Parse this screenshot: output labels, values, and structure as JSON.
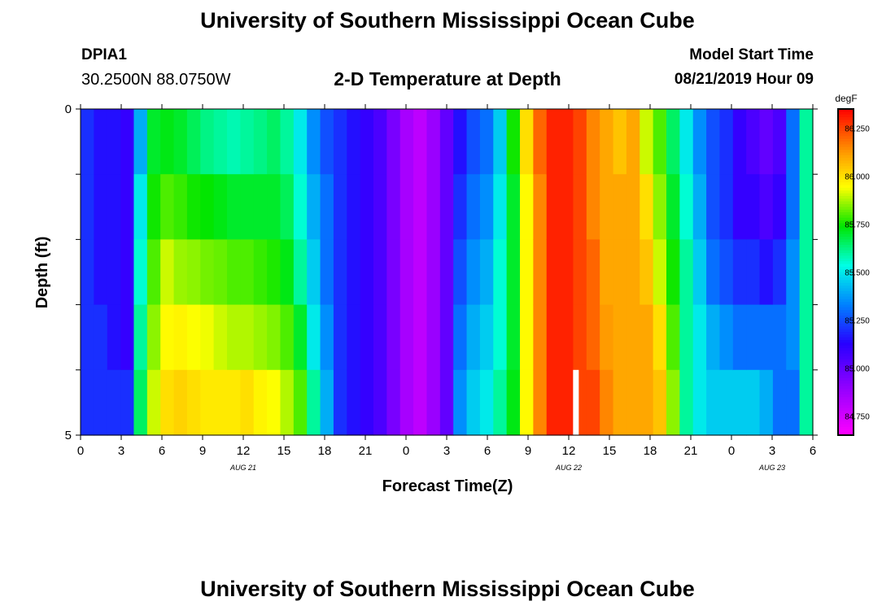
{
  "header": {
    "main_title": "University of Southern Mississippi Ocean Cube",
    "station_id": "DPIA1",
    "coordinates": "30.2500N 88.0750W",
    "model_start_label": "Model Start Time",
    "model_start_value": "08/21/2019 Hour 09"
  },
  "footer": {
    "title": "University of Southern Mississippi Ocean Cube"
  },
  "colors": {
    "marker": "#ffffff",
    "border": "#000000"
  },
  "chart_data": {
    "type": "heatmap",
    "title": "2-D Temperature at Depth",
    "xlabel": "Forecast Time(Z)",
    "ylabel": "Depth (ft)",
    "x_tick_labels": [
      "0",
      "3",
      "6",
      "9",
      "12",
      "15",
      "18",
      "21",
      "0",
      "3",
      "6",
      "9",
      "12",
      "15",
      "18",
      "21",
      "0",
      "3",
      "6"
    ],
    "x_range_hours": [
      0,
      54
    ],
    "date_labels": [
      {
        "text": "AUG 21",
        "hour": 12
      },
      {
        "text": "AUG 22",
        "hour": 36
      },
      {
        "text": "AUG 23",
        "hour": 51
      }
    ],
    "y_range": [
      0,
      5
    ],
    "y_tick_labels": [
      "0",
      "5"
    ],
    "y_minor_ticks": [
      0,
      1,
      2,
      3,
      4,
      5
    ],
    "depth_bands": 5,
    "colorbar": {
      "unit": "degF",
      "min": 84.65,
      "max": 86.35,
      "ticks": [
        "86.250",
        "86.000",
        "85.750",
        "85.500",
        "85.250",
        "85.000",
        "84.750"
      ]
    },
    "current_time_marker_hour": 36.5,
    "hourly_profiles": [
      [
        85.2,
        85.2,
        85.2,
        85.2,
        85.2
      ],
      [
        85.15,
        85.15,
        85.15,
        85.2,
        85.2
      ],
      [
        85.15,
        85.15,
        85.15,
        85.15,
        85.2
      ],
      [
        85.1,
        85.1,
        85.1,
        85.1,
        85.2
      ],
      [
        85.4,
        85.5,
        85.55,
        85.6,
        85.65
      ],
      [
        85.7,
        85.75,
        85.8,
        85.85,
        85.9
      ],
      [
        85.72,
        85.8,
        85.9,
        85.95,
        86.0
      ],
      [
        85.7,
        85.78,
        85.86,
        85.96,
        86.02
      ],
      [
        85.66,
        85.75,
        85.85,
        85.94,
        86.0
      ],
      [
        85.62,
        85.74,
        85.83,
        85.93,
        85.98
      ],
      [
        85.6,
        85.72,
        85.82,
        85.9,
        85.98
      ],
      [
        85.58,
        85.7,
        85.8,
        85.88,
        85.98
      ],
      [
        85.6,
        85.7,
        85.8,
        85.88,
        86.0
      ],
      [
        85.62,
        85.7,
        85.78,
        85.86,
        85.96
      ],
      [
        85.65,
        85.7,
        85.76,
        85.84,
        85.94
      ],
      [
        85.6,
        85.66,
        85.72,
        85.8,
        85.88
      ],
      [
        85.5,
        85.55,
        85.6,
        85.7,
        85.8
      ],
      [
        85.35,
        85.4,
        85.45,
        85.5,
        85.6
      ],
      [
        85.25,
        85.3,
        85.3,
        85.35,
        85.4
      ],
      [
        85.2,
        85.2,
        85.2,
        85.2,
        85.2
      ],
      [
        85.15,
        85.15,
        85.15,
        85.15,
        85.15
      ],
      [
        85.1,
        85.1,
        85.1,
        85.1,
        85.1
      ],
      [
        85.05,
        85.05,
        85.05,
        85.05,
        85.05
      ],
      [
        84.95,
        84.95,
        84.95,
        84.95,
        84.95
      ],
      [
        84.85,
        84.85,
        84.85,
        84.85,
        84.85
      ],
      [
        84.8,
        84.8,
        84.8,
        84.8,
        84.8
      ],
      [
        84.88,
        84.88,
        84.88,
        84.88,
        84.88
      ],
      [
        85.0,
        85.0,
        85.0,
        85.0,
        85.0
      ],
      [
        85.15,
        85.2,
        85.25,
        85.3,
        85.35
      ],
      [
        85.25,
        85.3,
        85.35,
        85.4,
        85.45
      ],
      [
        85.3,
        85.35,
        85.4,
        85.45,
        85.5
      ],
      [
        85.45,
        85.5,
        85.55,
        85.55,
        85.6
      ],
      [
        85.75,
        85.7,
        85.7,
        85.7,
        85.72
      ],
      [
        86.0,
        85.95,
        85.95,
        85.95,
        85.95
      ],
      [
        86.2,
        86.15,
        86.15,
        86.15,
        86.15
      ],
      [
        86.3,
        86.3,
        86.3,
        86.3,
        86.3
      ],
      [
        86.3,
        86.3,
        86.3,
        86.3,
        86.3
      ],
      [
        86.25,
        86.25,
        86.25,
        86.25,
        86.25
      ],
      [
        86.15,
        86.15,
        86.2,
        86.2,
        86.25
      ],
      [
        86.1,
        86.1,
        86.1,
        86.12,
        86.15
      ],
      [
        86.05,
        86.1,
        86.1,
        86.1,
        86.1
      ],
      [
        86.1,
        86.1,
        86.1,
        86.1,
        86.1
      ],
      [
        85.9,
        86.0,
        86.05,
        86.1,
        86.1
      ],
      [
        85.8,
        85.85,
        85.9,
        86.0,
        86.05
      ],
      [
        85.65,
        85.7,
        85.75,
        85.8,
        85.85
      ],
      [
        85.5,
        85.55,
        85.6,
        85.6,
        85.6
      ],
      [
        85.35,
        85.4,
        85.45,
        85.5,
        85.5
      ],
      [
        85.25,
        85.25,
        85.3,
        85.4,
        85.45
      ],
      [
        85.2,
        85.2,
        85.25,
        85.35,
        85.45
      ],
      [
        85.1,
        85.1,
        85.2,
        85.3,
        85.45
      ],
      [
        85.05,
        85.1,
        85.2,
        85.3,
        85.45
      ],
      [
        85.0,
        85.05,
        85.15,
        85.3,
        85.4
      ],
      [
        85.05,
        85.1,
        85.2,
        85.3,
        85.3
      ],
      [
        85.3,
        85.3,
        85.35,
        85.35,
        85.3
      ],
      [
        85.6,
        85.6,
        85.6,
        85.6,
        85.6
      ]
    ]
  }
}
